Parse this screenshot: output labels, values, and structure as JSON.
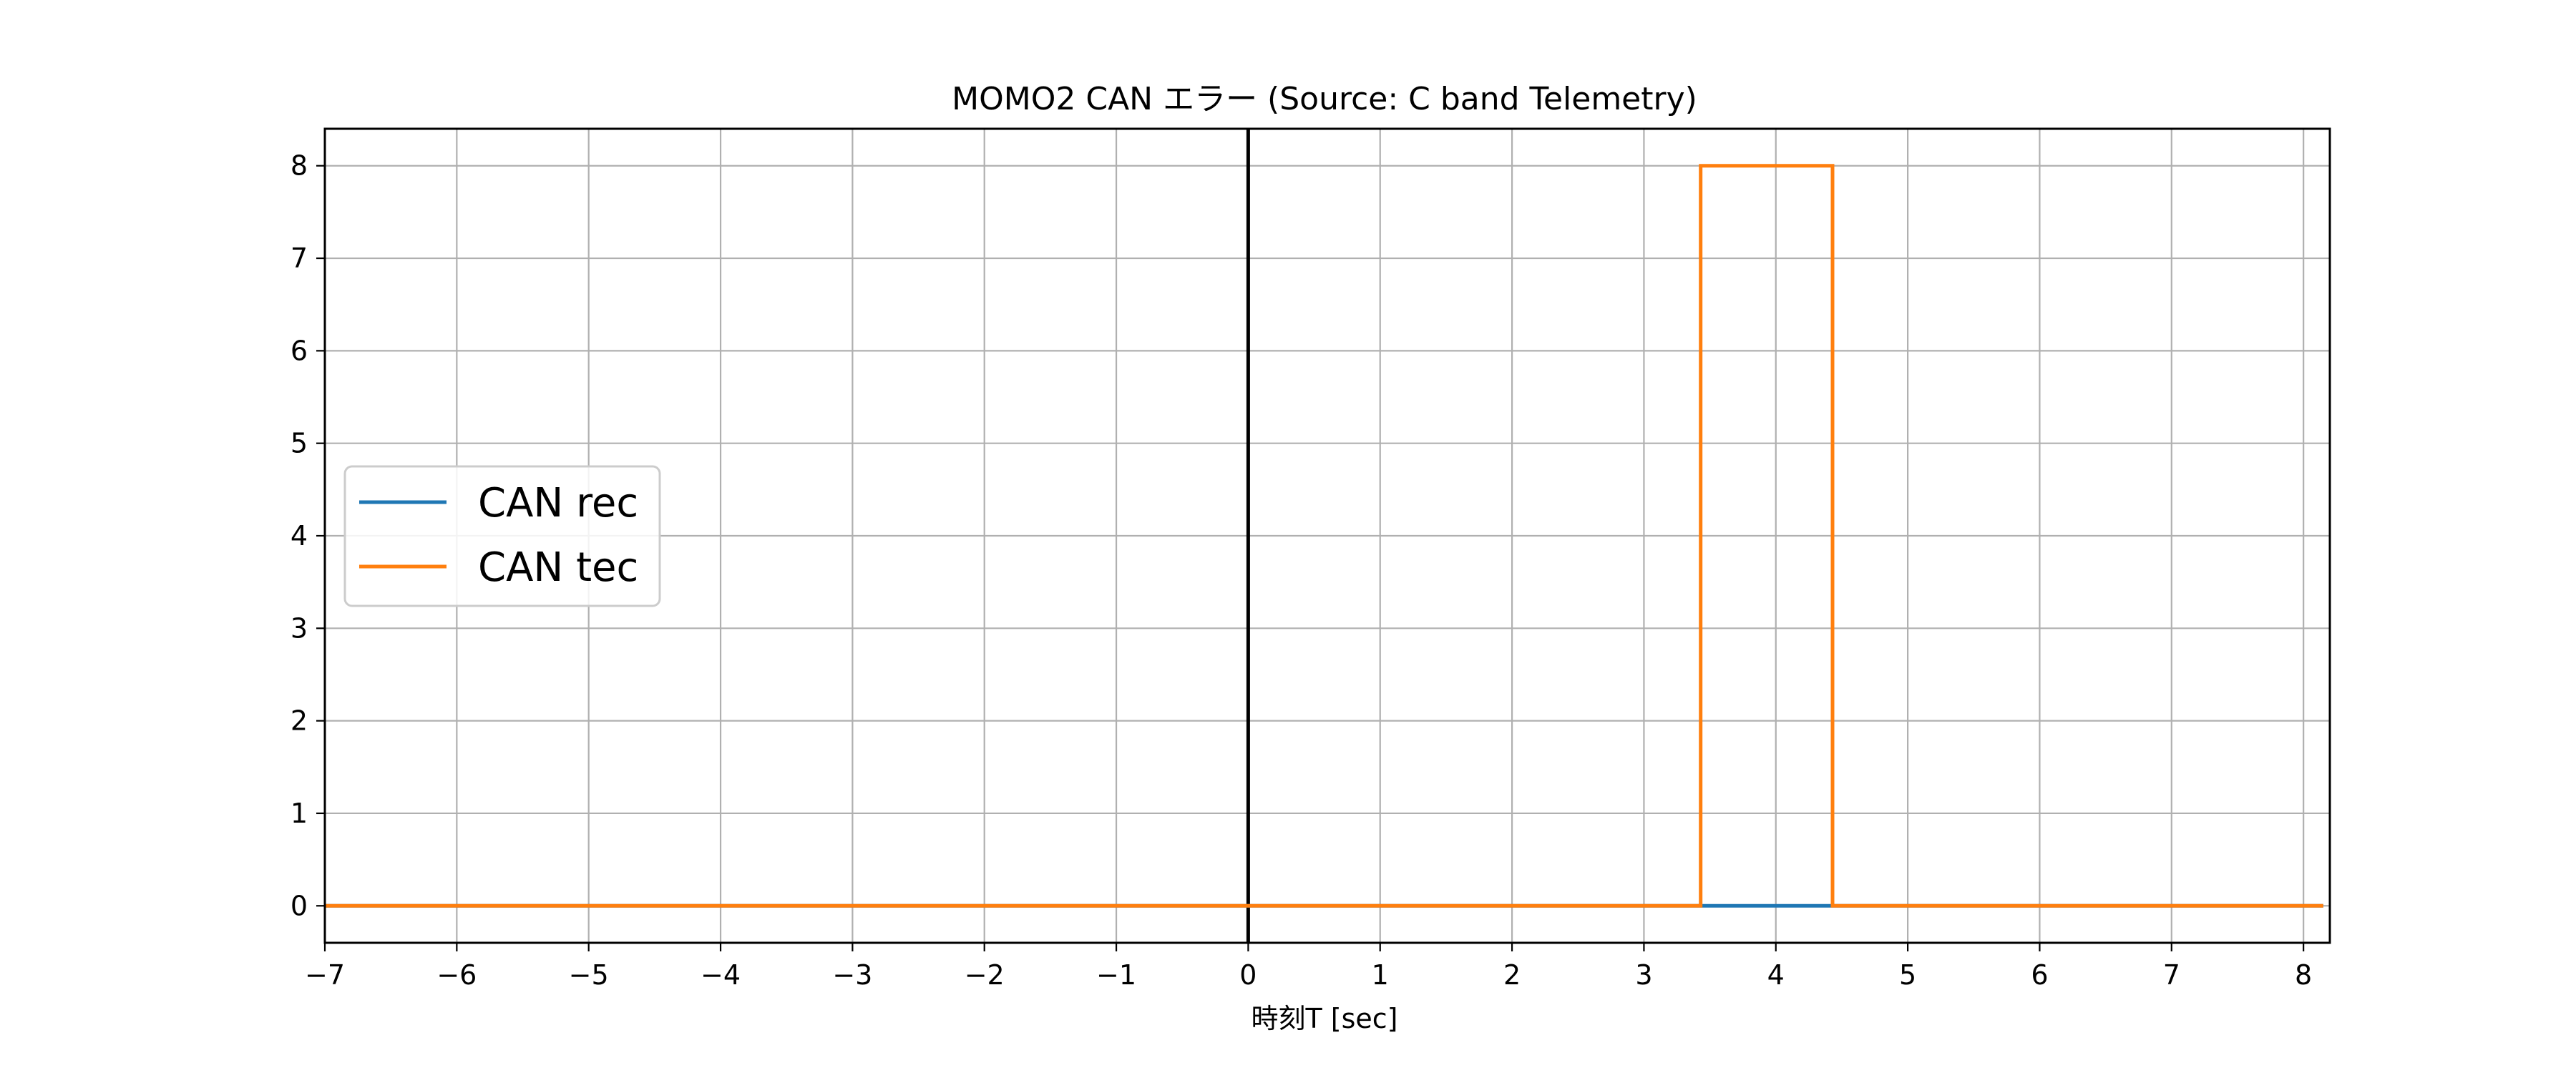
{
  "chart_data": {
    "type": "line",
    "title": "MOMO2 CAN エラー (Source: C band Telemetry)",
    "xlabel": "時刻T [sec]",
    "ylabel": "",
    "xlim": [
      -7,
      8.2
    ],
    "ylim": [
      -0.4,
      8.4
    ],
    "xticks": [
      -7,
      -6,
      -5,
      -4,
      -3,
      -2,
      -1,
      0,
      1,
      2,
      3,
      4,
      5,
      6,
      7,
      8
    ],
    "xtick_labels": [
      "−7",
      "−6",
      "−5",
      "−4",
      "−3",
      "−2",
      "−1",
      "0",
      "1",
      "2",
      "3",
      "4",
      "5",
      "6",
      "7",
      "8"
    ],
    "yticks": [
      0,
      1,
      2,
      3,
      4,
      5,
      6,
      7,
      8
    ],
    "ytick_labels": [
      "0",
      "1",
      "2",
      "3",
      "4",
      "5",
      "6",
      "7",
      "8"
    ],
    "grid": true,
    "legend_position": "center-left",
    "vline": {
      "x": 0,
      "color": "#000000"
    },
    "series": [
      {
        "name": "CAN rec",
        "color": "#1f77b4",
        "x": [
          -7,
          8.15
        ],
        "y": [
          0,
          0
        ]
      },
      {
        "name": "CAN tec",
        "color": "#ff7f0e",
        "x": [
          -7,
          3.43,
          3.43,
          4.43,
          4.43,
          8.15
        ],
        "y": [
          0,
          0,
          8,
          8,
          0,
          0
        ]
      }
    ]
  }
}
